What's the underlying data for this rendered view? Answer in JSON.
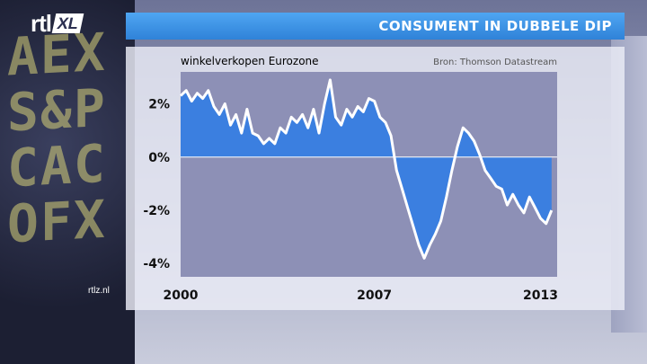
{
  "header": {
    "logo_rtl": "rtl",
    "logo_xl": "XL",
    "title": "CONSUMENT IN DUBBELE DIP"
  },
  "watermark": "rtlz.nl",
  "colors": {
    "fill": "#3b7fe0",
    "line": "#ffffff",
    "title_bar": "#3a8fe3",
    "plot_bg": "#8d90b6"
  },
  "chart_data": {
    "type": "area",
    "title": "winkelverkopen Eurozone",
    "source": "Bron: Thomson Datastream",
    "xlabel": "",
    "ylabel": "",
    "xlim": [
      2000,
      2013.6
    ],
    "ylim": [
      -4.5,
      3.2
    ],
    "x_ticks": [
      {
        "value": 2000,
        "label": "2000"
      },
      {
        "value": 2007,
        "label": "2007"
      },
      {
        "value": 2013,
        "label": "2013"
      }
    ],
    "y_ticks": [
      {
        "value": 2,
        "label": "2%"
      },
      {
        "value": 0,
        "label": "0%"
      },
      {
        "value": -2,
        "label": "-2%"
      },
      {
        "value": -4,
        "label": "-4%"
      }
    ],
    "grid": false,
    "x": [
      2000.0,
      2000.2,
      2000.4,
      2000.6,
      2000.8,
      2001.0,
      2001.2,
      2001.4,
      2001.6,
      2001.8,
      2002.0,
      2002.2,
      2002.4,
      2002.6,
      2002.8,
      2003.0,
      2003.2,
      2003.4,
      2003.6,
      2003.8,
      2004.0,
      2004.2,
      2004.4,
      2004.6,
      2004.8,
      2005.0,
      2005.2,
      2005.4,
      2005.6,
      2005.8,
      2006.0,
      2006.2,
      2006.4,
      2006.6,
      2006.8,
      2007.0,
      2007.2,
      2007.4,
      2007.6,
      2007.8,
      2008.0,
      2008.2,
      2008.4,
      2008.6,
      2008.8,
      2009.0,
      2009.2,
      2009.4,
      2009.6,
      2009.8,
      2010.0,
      2010.2,
      2010.4,
      2010.6,
      2010.8,
      2011.0,
      2011.2,
      2011.4,
      2011.6,
      2011.8,
      2012.0,
      2012.2,
      2012.4,
      2012.6,
      2012.8,
      2013.0,
      2013.2,
      2013.4
    ],
    "values": [
      2.3,
      2.5,
      2.1,
      2.4,
      2.2,
      2.5,
      1.9,
      1.6,
      2.0,
      1.2,
      1.6,
      0.9,
      1.8,
      0.9,
      0.8,
      0.5,
      0.7,
      0.5,
      1.1,
      0.9,
      1.5,
      1.3,
      1.6,
      1.1,
      1.8,
      0.9,
      2.0,
      2.9,
      1.5,
      1.2,
      1.8,
      1.5,
      1.9,
      1.7,
      2.2,
      2.1,
      1.5,
      1.3,
      0.8,
      -0.5,
      -1.2,
      -1.9,
      -2.6,
      -3.3,
      -3.8,
      -3.3,
      -2.9,
      -2.4,
      -1.5,
      -0.5,
      0.4,
      1.1,
      0.9,
      0.6,
      0.1,
      -0.5,
      -0.8,
      -1.1,
      -1.2,
      -1.8,
      -1.4,
      -1.8,
      -2.1,
      -1.5,
      -1.9,
      -2.3,
      -2.5,
      -2.0
    ]
  }
}
